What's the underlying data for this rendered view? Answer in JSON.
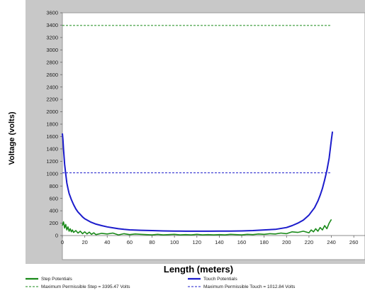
{
  "chart_data": {
    "type": "line",
    "title": "",
    "xlabel": "Length (meters)",
    "ylabel": "Voltage (volts)",
    "xlim": [
      0,
      270
    ],
    "ylim": [
      0,
      3600
    ],
    "x_ticks": [
      0,
      20,
      40,
      60,
      80,
      100,
      120,
      140,
      160,
      180,
      200,
      220,
      240,
      260
    ],
    "x_tick_labels": [
      "0",
      "20",
      "40",
      "60",
      "80",
      "100",
      "120",
      "140",
      "160",
      "180",
      "200",
      "220",
      "240",
      "260"
    ],
    "y_ticks": [
      0,
      200,
      400,
      600,
      800,
      1000,
      1200,
      1400,
      1600,
      1800,
      2000,
      2200,
      2400,
      2600,
      2800,
      3000,
      3200,
      3400,
      3600
    ],
    "y_tick_labels": [
      "0",
      "200",
      "400",
      "600",
      "800",
      "1000",
      "1200",
      "1400",
      "1600",
      "1800",
      "2000",
      "2200",
      "2400",
      "2600",
      "2800",
      "3000",
      "3200",
      "3400",
      "3600"
    ],
    "grid": false,
    "legend_position": "bottom",
    "series": [
      {
        "name": "Step Potentials",
        "color": "#1a8a1a",
        "style": "solid",
        "x": [
          0,
          1,
          2,
          3,
          4,
          5,
          6,
          7,
          8,
          9,
          10,
          12,
          14,
          16,
          18,
          20,
          22,
          24,
          26,
          28,
          30,
          35,
          40,
          45,
          50,
          55,
          60,
          65,
          70,
          75,
          80,
          85,
          90,
          95,
          100,
          105,
          110,
          115,
          120,
          125,
          130,
          135,
          140,
          145,
          150,
          155,
          160,
          165,
          170,
          175,
          180,
          185,
          190,
          195,
          200,
          205,
          210,
          215,
          220,
          222,
          224,
          226,
          228,
          230,
          232,
          234,
          236,
          238,
          239,
          240
        ],
        "y": [
          160,
          220,
          120,
          180,
          90,
          140,
          70,
          110,
          60,
          90,
          50,
          80,
          40,
          70,
          30,
          60,
          25,
          55,
          20,
          45,
          15,
          35,
          25,
          40,
          10,
          30,
          15,
          25,
          20,
          15,
          10,
          20,
          10,
          15,
          20,
          10,
          15,
          10,
          20,
          10,
          15,
          10,
          15,
          10,
          20,
          15,
          10,
          20,
          15,
          25,
          20,
          30,
          25,
          40,
          30,
          60,
          50,
          70,
          45,
          90,
          60,
          110,
          70,
          130,
          90,
          160,
          110,
          200,
          230,
          260
        ]
      },
      {
        "name": "Touch Potentials",
        "color": "#1c1ccc",
        "style": "solid",
        "x": [
          0,
          0.5,
          1,
          2,
          3,
          4,
          5,
          6,
          8,
          10,
          12,
          14,
          16,
          18,
          20,
          25,
          30,
          35,
          40,
          45,
          50,
          55,
          60,
          70,
          80,
          90,
          100,
          110,
          120,
          130,
          140,
          150,
          160,
          170,
          180,
          190,
          200,
          205,
          210,
          215,
          220,
          225,
          228,
          230,
          232,
          234,
          236,
          238,
          239,
          240,
          241
        ],
        "y": [
          1650,
          1550,
          1400,
          1150,
          1000,
          850,
          760,
          680,
          580,
          500,
          430,
          380,
          340,
          300,
          270,
          220,
          185,
          160,
          140,
          125,
          110,
          100,
          92,
          85,
          80,
          75,
          72,
          70,
          70,
          70,
          72,
          72,
          75,
          80,
          90,
          100,
          130,
          160,
          200,
          250,
          330,
          450,
          560,
          650,
          760,
          900,
          1050,
          1250,
          1400,
          1550,
          1680
        ]
      }
    ],
    "reference_lines": [
      {
        "name": "Maximum Permissible Step = 3395.47 Volts",
        "value": 3395.47,
        "color": "#1a8a1a",
        "style": "dashed"
      },
      {
        "name": "Maximum Permissible Touch = 1012.84 Volts",
        "value": 1012.84,
        "color": "#1c1ccc",
        "style": "dashed"
      }
    ],
    "reference_line_x_range": [
      0,
      240
    ]
  }
}
